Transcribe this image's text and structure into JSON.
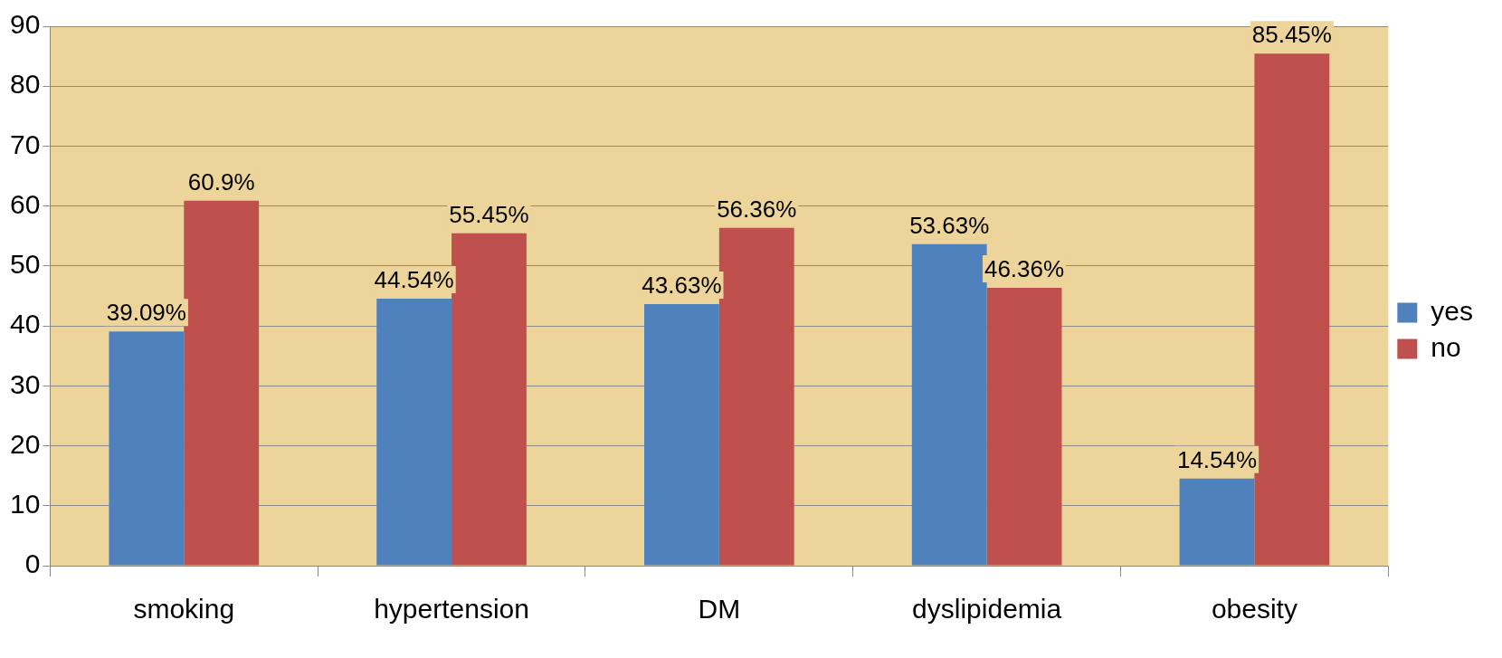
{
  "chart_data": {
    "type": "bar",
    "categories": [
      "smoking",
      "hypertension",
      "DM",
      "dyslipidemia",
      "obesity"
    ],
    "series": [
      {
        "name": "yes",
        "color": "#4f81bd",
        "values": [
          39.09,
          44.54,
          43.63,
          53.63,
          14.54
        ],
        "value_labels": [
          "39.09%",
          "44.54%",
          "43.63%",
          "53.63%",
          "14.54%"
        ]
      },
      {
        "name": "no",
        "color": "#c0504d",
        "values": [
          60.9,
          55.45,
          56.36,
          46.36,
          85.45
        ],
        "value_labels": [
          "60.9%",
          "55.45%",
          "56.36%",
          "46.36%",
          "85.45%"
        ]
      }
    ],
    "ylim": [
      0,
      90
    ],
    "yticks": [
      0,
      10,
      20,
      30,
      40,
      50,
      60,
      70,
      80,
      90
    ],
    "grid": "y",
    "legend": "right"
  }
}
